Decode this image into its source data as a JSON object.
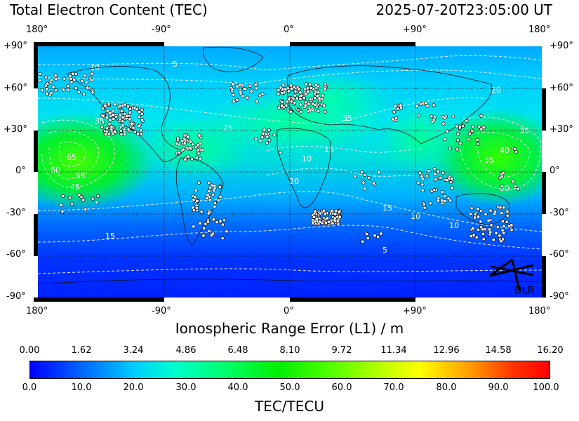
{
  "header": {
    "title": "Total Electron Content (TEC)",
    "timestamp": "2025-07-20T23:05:00 UT"
  },
  "map": {
    "lon_ticks": [
      "180°",
      "-90°",
      "0°",
      "+90°",
      "180°"
    ],
    "lat_ticks": [
      "+90°",
      "+60°",
      "+30°",
      "0°",
      "-30°",
      "-60°",
      "-90°"
    ],
    "contour_labels": [
      "5",
      "10",
      "15",
      "20",
      "25",
      "30",
      "35",
      "40",
      "45",
      "50",
      "55",
      "60",
      "65"
    ],
    "logo_text": "DLR",
    "colormap": [
      "#0000ff",
      "#00ccff",
      "#00ff66",
      "#00ee00",
      "#aaff00",
      "#ffff00",
      "#ff0000"
    ]
  },
  "range_axis": {
    "label": "Ionospheric Range Error (L1) / m",
    "ticks": [
      "0.00",
      "1.62",
      "3.24",
      "4.86",
      "6.48",
      "8.10",
      "9.72",
      "11.34",
      "12.96",
      "14.58",
      "16.20"
    ]
  },
  "tec_axis": {
    "label": "TEC/TECU",
    "ticks": [
      "0.0",
      "10.0",
      "20.0",
      "30.0",
      "40.0",
      "50.0",
      "60.0",
      "70.0",
      "80.0",
      "90.0",
      "100.0"
    ]
  }
}
